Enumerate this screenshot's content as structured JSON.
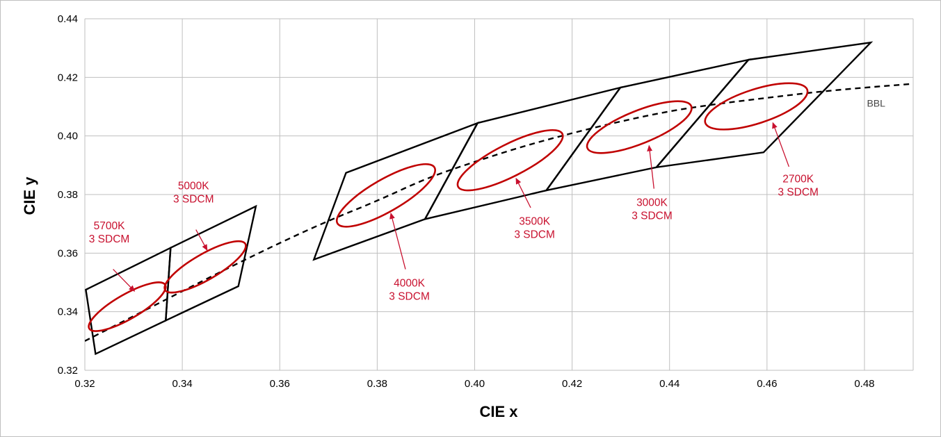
{
  "chart_data": {
    "type": "scatter",
    "title": "",
    "xlabel": "CIE x",
    "ylabel": "CIE y",
    "xlim": [
      0.32,
      0.49
    ],
    "ylim": [
      0.32,
      0.44
    ],
    "x_ticks": [
      "0.32",
      "0.34",
      "0.36",
      "0.38",
      "0.40",
      "0.42",
      "0.44",
      "0.46",
      "0.48"
    ],
    "y_ticks": [
      "0.32",
      "0.34",
      "0.36",
      "0.38",
      "0.40",
      "0.42",
      "0.44"
    ],
    "grid": true,
    "colors": {
      "quadrangle": "#000000",
      "ellipse": "#c00000",
      "annotation": "#c8102e",
      "bbl": "#000000"
    },
    "bbl": {
      "label": "BBL",
      "points": [
        [
          0.32,
          0.33
        ],
        [
          0.33,
          0.3385
        ],
        [
          0.34,
          0.347
        ],
        [
          0.35,
          0.3554
        ],
        [
          0.36,
          0.3635
        ],
        [
          0.37,
          0.3711
        ],
        [
          0.38,
          0.3778
        ],
        [
          0.39,
          0.3855
        ],
        [
          0.4,
          0.3912
        ],
        [
          0.41,
          0.3965
        ],
        [
          0.42,
          0.401
        ],
        [
          0.43,
          0.405
        ],
        [
          0.44,
          0.4085
        ],
        [
          0.45,
          0.411
        ],
        [
          0.46,
          0.413
        ],
        [
          0.47,
          0.415
        ],
        [
          0.48,
          0.4165
        ],
        [
          0.49,
          0.4178
        ]
      ]
    },
    "quadrangles": [
      {
        "cct": "5700K",
        "points": [
          [
            0.3202,
            0.3475
          ],
          [
            0.3376,
            0.3618
          ],
          [
            0.3366,
            0.337
          ],
          [
            0.3222,
            0.3256
          ]
        ]
      },
      {
        "cct": "5000K",
        "points": [
          [
            0.3376,
            0.3618
          ],
          [
            0.3551,
            0.376
          ],
          [
            0.3515,
            0.3487
          ],
          [
            0.3366,
            0.337
          ]
        ]
      },
      {
        "cct": "4000K",
        "points": [
          [
            0.3736,
            0.3874
          ],
          [
            0.4006,
            0.4044
          ],
          [
            0.3898,
            0.3716
          ],
          [
            0.367,
            0.3578
          ]
        ]
      },
      {
        "cct": "3500K",
        "points": [
          [
            0.4006,
            0.4044
          ],
          [
            0.4299,
            0.4165
          ],
          [
            0.4147,
            0.3814
          ],
          [
            0.3898,
            0.3716
          ]
        ]
      },
      {
        "cct": "3000K",
        "points": [
          [
            0.4299,
            0.4165
          ],
          [
            0.4562,
            0.426
          ],
          [
            0.4373,
            0.3893
          ],
          [
            0.4147,
            0.3814
          ]
        ]
      },
      {
        "cct": "2700K",
        "points": [
          [
            0.4562,
            0.426
          ],
          [
            0.4813,
            0.4319
          ],
          [
            0.4593,
            0.3944
          ],
          [
            0.4373,
            0.3893
          ]
        ]
      }
    ],
    "ellipses": [
      {
        "cct": "5700K",
        "label": [
          "5700K",
          "3 SDCM"
        ],
        "center": [
          0.3287,
          0.3417
        ],
        "rx": 0.009,
        "ry": 0.0042,
        "angle": 30
      },
      {
        "cct": "5000K",
        "label": [
          "5000K",
          "3 SDCM"
        ],
        "center": [
          0.3447,
          0.3553
        ],
        "rx": 0.0095,
        "ry": 0.0044,
        "angle": 30
      },
      {
        "cct": "4000K",
        "label": [
          "4000K",
          "3 SDCM"
        ],
        "center": [
          0.3818,
          0.3797
        ],
        "rx": 0.0115,
        "ry": 0.0055,
        "angle": 30
      },
      {
        "cct": "3500K",
        "label": [
          "3500K",
          "3 SDCM"
        ],
        "center": [
          0.4073,
          0.3917
        ],
        "rx": 0.012,
        "ry": 0.0055,
        "angle": 27
      },
      {
        "cct": "3000K",
        "label": [
          "3000K",
          "3 SDCM"
        ],
        "center": [
          0.4338,
          0.403
        ],
        "rx": 0.0115,
        "ry": 0.0056,
        "angle": 22
      },
      {
        "cct": "2700K",
        "label": [
          "2700K",
          "3 SDCM"
        ],
        "center": [
          0.4578,
          0.4101
        ],
        "rx": 0.011,
        "ry": 0.0058,
        "angle": 18
      }
    ]
  }
}
